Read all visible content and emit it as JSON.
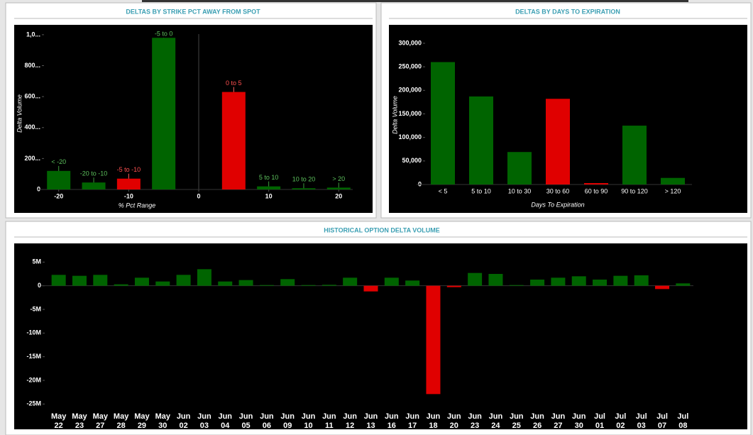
{
  "chart_data": [
    {
      "type": "bar",
      "title": "DELTAS BY STRIKE PCT AWAY FROM SPOT",
      "x_label": "% Pct Range",
      "y_label": "Delta Volume",
      "x": [
        -20,
        -15,
        -10,
        -5,
        5,
        10,
        15,
        20
      ],
      "labels": [
        "< -20",
        "-20 to -10",
        "-5 to -10",
        "-5 to 0",
        "0 to 5",
        "5 to 10",
        "10 to 20",
        "> 20"
      ],
      "values": [
        120,
        45,
        70,
        980,
        630,
        20,
        8,
        12
      ],
      "colors": [
        "#006400",
        "#006400",
        "#e00000",
        "#006400",
        "#e00000",
        "#006400",
        "#006400",
        "#006400"
      ],
      "xlim": [
        -22,
        22
      ],
      "xticks": [
        -20,
        -10,
        0,
        10,
        20
      ],
      "ylim": [
        0,
        1050
      ],
      "yticks": [
        0,
        {
          "value": 200,
          "label": "200..."
        },
        {
          "value": 400,
          "label": "400..."
        },
        {
          "value": 600,
          "label": "600..."
        },
        {
          "value": 800,
          "label": "800..."
        },
        {
          "value": 1000,
          "label": "1,0..."
        }
      ]
    },
    {
      "type": "bar",
      "title": "DELTAS BY DAYS TO EXPIRATION",
      "x_label": "Days To Expiration",
      "y_label": "Delta Volume",
      "categories": [
        "< 5",
        "5 to 10",
        "10 to 30",
        "30 to 60",
        "60 to 90",
        "90 to 120",
        "> 120"
      ],
      "values": [
        260000,
        187000,
        69000,
        182000,
        3000,
        125000,
        14000
      ],
      "colors": [
        "#006400",
        "#006400",
        "#006400",
        "#e00000",
        "#e00000",
        "#006400",
        "#006400"
      ],
      "ylim": [
        0,
        315000
      ],
      "yticks": [
        0,
        {
          "value": 50000,
          "label": "50,000"
        },
        {
          "value": 100000,
          "label": "100,000"
        },
        {
          "value": 150000,
          "label": "150,000"
        },
        {
          "value": 200000,
          "label": "200,000"
        },
        {
          "value": 250000,
          "label": "250,000"
        },
        {
          "value": 300000,
          "label": "300,000"
        }
      ]
    },
    {
      "type": "bar",
      "title": "HISTORICAL OPTION DELTA VOLUME",
      "categories": [
        "May 22",
        "May 23",
        "May 27",
        "May 28",
        "May 29",
        "May 30",
        "Jun 02",
        "Jun 03",
        "Jun 04",
        "Jun 05",
        "Jun 06",
        "Jun 09",
        "Jun 10",
        "Jun 11",
        "Jun 12",
        "Jun 13",
        "Jun 16",
        "Jun 17",
        "Jun 18",
        "Jun 20",
        "Jun 23",
        "Jun 24",
        "Jun 25",
        "Jun 26",
        "Jun 27",
        "Jun 30",
        "Jul 01",
        "Jul 02",
        "Jul 03",
        "Jul 07",
        "Jul 08"
      ],
      "values": [
        2.3,
        2.1,
        2.3,
        0.3,
        1.7,
        0.9,
        2.3,
        3.5,
        0.9,
        1.2,
        0.15,
        1.4,
        0.15,
        0.2,
        1.7,
        -1.2,
        1.7,
        1.1,
        -22.9,
        -0.3,
        2.7,
        2.5,
        0.15,
        1.3,
        1.7,
        2.0,
        1.3,
        2.1,
        2.2,
        -0.7,
        0.5
      ],
      "positive_color": "#006400",
      "negative_color": "#e00000",
      "ylim": [
        -26,
        7
      ],
      "yticks": [
        {
          "value": 5,
          "label": "5M"
        },
        0,
        {
          "value": -5,
          "label": "-5M"
        },
        {
          "value": -10,
          "label": "-10M"
        },
        {
          "value": -15,
          "label": "-15M"
        },
        {
          "value": -20,
          "label": "-20M"
        },
        {
          "value": -25,
          "label": "-25M"
        }
      ]
    }
  ]
}
